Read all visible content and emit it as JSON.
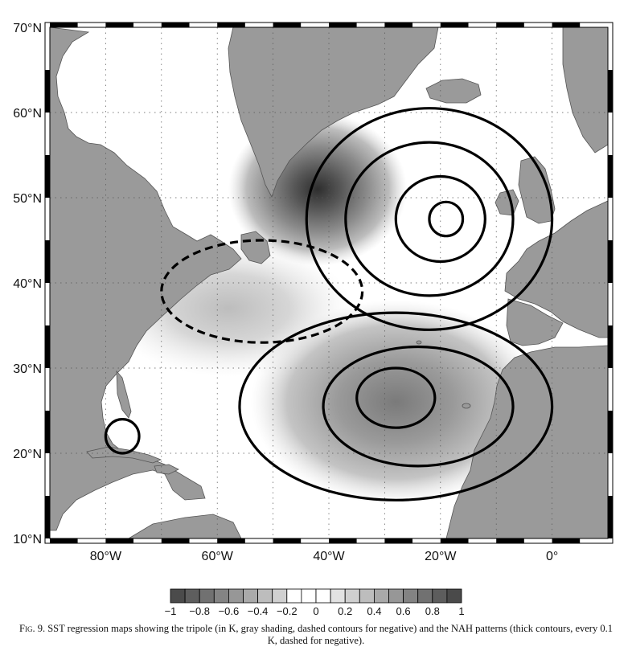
{
  "chart_data": {
    "type": "heatmap",
    "map": {
      "lon_range": [
        -90,
        10
      ],
      "lat_range": [
        10,
        70
      ],
      "x_ticks": [
        {
          "lon": -80,
          "label": "80°W"
        },
        {
          "lon": -60,
          "label": "60°W"
        },
        {
          "lon": -40,
          "label": "40°W"
        },
        {
          "lon": -20,
          "label": "20°W"
        },
        {
          "lon": 0,
          "label": "0°"
        }
      ],
      "y_ticks": [
        {
          "lat": 70,
          "label": "70°N"
        },
        {
          "lat": 60,
          "label": "60°N"
        },
        {
          "lat": 50,
          "label": "50°N"
        },
        {
          "lat": 40,
          "label": "40°N"
        },
        {
          "lat": 30,
          "label": "30°N"
        },
        {
          "lat": 20,
          "label": "20°N"
        },
        {
          "lat": 10,
          "label": "10°N"
        }
      ],
      "grid": "dotted",
      "land_color": "#9a9a9a",
      "ocean_color": "#ffffff"
    },
    "colorbar": {
      "min": -1,
      "max": 1,
      "step": 0.1,
      "labels": [
        "-1",
        "-0.8",
        "-0.6",
        "-0.4",
        "-0.2",
        "0",
        "0.2",
        "0.4",
        "0.6",
        "0.8",
        "1"
      ],
      "placement": "bottom"
    },
    "sst_tripole_shading": [
      {
        "name": "subpolar",
        "center": [
          -42,
          51
        ],
        "peak": 0.7
      },
      {
        "name": "subtropical",
        "center": [
          -58,
          37
        ],
        "peak": -0.3
      },
      {
        "name": "tropical",
        "center": [
          -28,
          26
        ],
        "peak": 0.5
      }
    ],
    "nah_contours": [
      {
        "level": 0.1,
        "center": [
          -22,
          47.5
        ],
        "rx": 22,
        "ry": 13
      },
      {
        "level": 0.2,
        "center": [
          -22,
          47.5
        ],
        "rx": 15,
        "ry": 9
      },
      {
        "level": 0.3,
        "center": [
          -20,
          47.5
        ],
        "rx": 8,
        "ry": 5
      },
      {
        "level": 0.4,
        "center": [
          -19,
          47.5
        ],
        "rx": 3,
        "ry": 2
      },
      {
        "level": 0.1,
        "center": [
          -28,
          25.5
        ],
        "rx": 28,
        "ry": 11
      },
      {
        "level": 0.2,
        "center": [
          -24,
          25.5
        ],
        "rx": 17,
        "ry": 7
      },
      {
        "level": 0.3,
        "center": [
          -28,
          26.5
        ],
        "rx": 7,
        "ry": 3.5
      },
      {
        "level": -0.1,
        "center": [
          -52,
          39
        ],
        "rx": 18,
        "ry": 6
      },
      {
        "level": 0.1,
        "center": [
          -77,
          22
        ],
        "rx": 3,
        "ry": 2
      }
    ]
  },
  "caption": {
    "fig_label": "Fig. 9.",
    "text": "SST regression maps showing the tripole (in K, gray shading, dashed contours for negative) and the NAH patterns (thick contours, every 0.1 K, dashed for negative)."
  }
}
